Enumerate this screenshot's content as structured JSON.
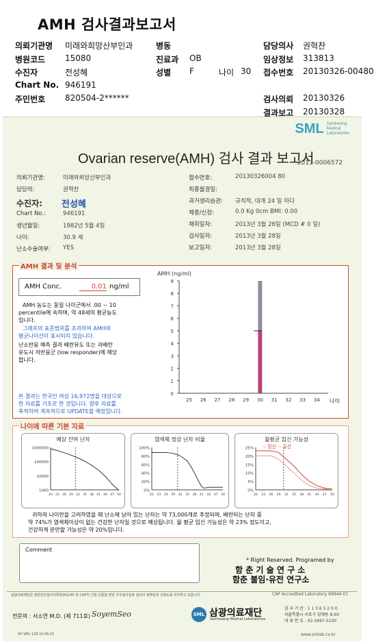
{
  "doc_title": "AMH 검사결과보고서",
  "header": {
    "left": [
      {
        "label": "의뢰기관명",
        "value": "미래와희망산부인과"
      },
      {
        "label": "병원코드",
        "value": "15080"
      },
      {
        "label": "수진자",
        "value": "전성혜"
      },
      {
        "label": "Chart No.",
        "value": "946191"
      },
      {
        "label": "주민번호",
        "value": "820504-2******"
      }
    ],
    "mid": [
      {
        "label": "병동",
        "value": ""
      },
      {
        "label": "진료과",
        "value": "OB"
      },
      {
        "label": "성별",
        "value": "F"
      }
    ],
    "age_label": "나이",
    "age_value": "30",
    "right": [
      {
        "label": "담당의사",
        "value": "권혁찬"
      },
      {
        "label": "임상정보",
        "value": "313813"
      },
      {
        "label": "접수번호",
        "value": "20130326-00480"
      },
      {
        "label": "",
        "value": ""
      },
      {
        "label": "검사의뢰",
        "value": "20130326"
      },
      {
        "label": "결과보고",
        "value": "20130328"
      }
    ]
  },
  "report": {
    "brand": "SML",
    "brand_sub1": "Samkwang",
    "brand_sub2": "Medical",
    "brand_sub3": "Laboratories",
    "title": "Ovarian reserve(AMH) 검사 결과 보고서",
    "number": "2013-0006572",
    "left_fields": [
      {
        "label": "의뢰기관명:",
        "value": "미래와희망산부인과"
      },
      {
        "label": "담당의:",
        "value": "권혁찬"
      },
      {
        "label": "Chart No.:",
        "value": "946191"
      },
      {
        "label": "생년월일:",
        "value": "1982년 5월 4일"
      },
      {
        "label": "나이:",
        "value": "30.9 세"
      },
      {
        "label": "난소수술여부:",
        "value": "YES"
      }
    ],
    "patient_label": "수진자:",
    "patient_value": "전성혜",
    "right_fields": [
      {
        "label": "접수번호:",
        "value": "20130326004 80"
      },
      {
        "label": "최종월경일:",
        "value": ""
      },
      {
        "label": "과거생리습관:",
        "value": "규칙적, 대개  24 일 마다"
      },
      {
        "label": "체중/신장:",
        "value": "0.0 Kg      0cm   BMI:   0.00"
      },
      {
        "label": "채취일자:",
        "value": "2013년 3월 26일   (MCD # 0 일)"
      },
      {
        "label": "검사일자:",
        "value": "2013년 3월 28일"
      },
      {
        "label": "보고일자:",
        "value": "2013년 3월 28일"
      }
    ],
    "amh_section_title": "AMH 결과 및 분석",
    "amh_label": "AMH Conc.",
    "amh_value": "0.01",
    "amh_unit": "ng/ml",
    "text1a": "AMH 농도는 동일 나이군에서  .00 ~  10",
    "text1b": "percentile에 속하며, 약   48세의 평균농도",
    "text1c": "입니다.",
    "text2a": "그래프의 표준범위를 초과하여 AMH의",
    "text2b": "평균나이선이 표시되지 않습니다.",
    "text3a": "난소반응 예측 결과 배란유도 또는 과배란",
    "text3b": "유도시 저반응군 (low responder)에 해당",
    "text3c": "합니다.",
    "text4a": "본 결과는 한국인 여성 16,972명을 대상으로",
    "text4b": "한 자료를 기초로 한 것입니다. 향후 자료를",
    "text4c": "축적하여 계속적으로 UPDATE할 예정입니다.",
    "basic_section_title": "나이에 따른 기본 자료",
    "panel1_title": "예상 잔여 난자",
    "panel2_title": "염색체 정상 난자 비율",
    "panel3_title": "월평균 임신 가능성",
    "panel3_legend": "-: 임신 -: 출산",
    "summary1": "귀하의 나이만을 고려하였을 때 난소에 남아 있는 난자는 약      73,000개로 추정되며, 배란되는 난자 중",
    "summary2": "약   74%가 염색체이상이 없는 건강한 난자일 것으로 예상됩니다. 월 평균 임신 가능성은 약   23% 정도이고,",
    "summary3": "건강하게 분만할 가능성은 약   20%입니다.",
    "comment_label": "Comment",
    "rights": "* Right Reserved. Programed by",
    "dev1": "함 춘 기 술 연 구 소",
    "dev2": "함춘 불임·유전 연구소",
    "cap": "CAP  Accredited  Laboratory  69944-01",
    "footnote": "삼광의료재단은 대한진단검사의학회(KSLM) 및 CAP의 신임 인증을 받은 우수검사실로 검사의 정확성과 신뢰도를 유지하고 있습니다.",
    "signer": "전문의 : 서소연 M.D. (제 711호)",
    "signature": "SoyemSeo",
    "foundation": "삼광의료재단",
    "foundation_sub": "Samkwang Medical Laboratories",
    "contact1": "검 사 기 관 : 1 1 3 6 5 2 0 0",
    "contact2": "서울특별시 서초구 양재동 8-60",
    "contact3": "대 표 번 호 : 02-3497-5100",
    "form_no": "RP  SML  128  10.06.01",
    "website": "www.smlab.co.kr"
  },
  "chart_data": [
    {
      "type": "bar",
      "ylabel": "AMH (ng/ml)",
      "xlabel": "나이",
      "categories": [
        "25",
        "26",
        "27",
        "28",
        "29",
        "30",
        "31",
        "32",
        "33",
        "34"
      ],
      "ylim": [
        0,
        9
      ],
      "yticks": [
        "0",
        "1",
        "2",
        "3",
        "4",
        "5",
        "6",
        "7",
        "8",
        "9"
      ],
      "range_bar": {
        "age": "30",
        "gray_from": 5,
        "gray_to": 9,
        "pink_from": 0,
        "pink_to": 5
      },
      "marker_value": 5
    },
    {
      "type": "line",
      "title": "예상 잔여 난자",
      "yticks": [
        "1000000",
        "100000",
        "10000",
        "1000"
      ],
      "xticks": [
        "20",
        "23",
        "26",
        "29",
        "32",
        "35",
        "38",
        "41",
        "44",
        "47",
        "50"
      ],
      "x": [
        20,
        23,
        26,
        29,
        32,
        35,
        38,
        41,
        44,
        47,
        50
      ],
      "y": [
        800000,
        600000,
        420000,
        280000,
        180000,
        105000,
        55000,
        25000,
        9000,
        2500,
        900
      ],
      "log": true,
      "marker_x": 30.9
    },
    {
      "type": "line",
      "title": "염색체 정상 난자 비율",
      "yticks": [
        "100%",
        "80%",
        "60%",
        "40%",
        "20%",
        "0%"
      ],
      "xticks": [
        "20",
        "23",
        "26",
        "29",
        "32",
        "35",
        "38",
        "41",
        "44",
        "47",
        "50"
      ],
      "x": [
        20,
        23,
        26,
        29,
        32,
        35,
        36.5,
        38,
        40,
        41,
        42,
        44,
        47,
        50
      ],
      "y": [
        88,
        88,
        88,
        86,
        80,
        68,
        55,
        40,
        18,
        8,
        4,
        6,
        6,
        6
      ],
      "marker_x": 30.9
    },
    {
      "type": "line",
      "title": "월평균 임신 가능성",
      "yticks": [
        "25%",
        "20%",
        "15%",
        "10%",
        "5%",
        "0%"
      ],
      "xticks": [
        "20",
        "23",
        "26",
        "29",
        "32",
        "35",
        "38",
        "41",
        "44",
        "47",
        "50"
      ],
      "series": [
        {
          "name": "임신",
          "x": [
            20,
            23,
            26,
            29,
            32,
            35,
            38,
            41,
            44,
            47,
            50
          ],
          "y": [
            23,
            23,
            23,
            22,
            18,
            14,
            9,
            5,
            2.5,
            1,
            0.5
          ]
        },
        {
          "name": "출산",
          "x": [
            20,
            23,
            26,
            29,
            32,
            35,
            38,
            41,
            44,
            47,
            50
          ],
          "y": [
            20,
            20,
            20,
            18,
            14,
            10,
            5.5,
            2.5,
            1,
            0.5,
            0.2
          ]
        }
      ],
      "marker_x": 30.9
    }
  ]
}
